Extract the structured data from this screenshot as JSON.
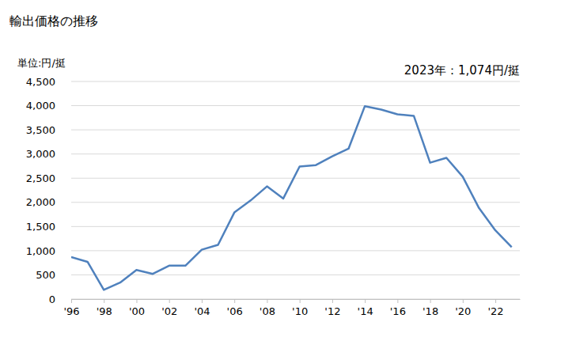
{
  "chart_data": {
    "type": "line",
    "title": "輸出価格の推移",
    "y_label": "単位:円/挺",
    "annotation": "2023年：1,074円/挺",
    "x": [
      1996,
      1997,
      1998,
      1999,
      2000,
      2001,
      2002,
      2003,
      2004,
      2005,
      2006,
      2007,
      2008,
      2009,
      2010,
      2011,
      2012,
      2013,
      2014,
      2015,
      2016,
      2017,
      2018,
      2019,
      2020,
      2021,
      2022,
      2023
    ],
    "values": [
      870,
      770,
      190,
      340,
      600,
      520,
      690,
      690,
      1020,
      1120,
      1790,
      2040,
      2330,
      2080,
      2740,
      2770,
      2950,
      3110,
      3990,
      3920,
      3820,
      3790,
      2820,
      2920,
      2530,
      1880,
      1420,
      1074
    ],
    "color": "#4f81bd",
    "xlim": [
      1996,
      2023.5
    ],
    "xticks": [
      {
        "value": 1996,
        "label": "'96"
      },
      {
        "value": 1998,
        "label": "'98"
      },
      {
        "value": 2000,
        "label": "'00"
      },
      {
        "value": 2002,
        "label": "'02"
      },
      {
        "value": 2004,
        "label": "'04"
      },
      {
        "value": 2006,
        "label": "'06"
      },
      {
        "value": 2008,
        "label": "'08"
      },
      {
        "value": 2010,
        "label": "'10"
      },
      {
        "value": 2012,
        "label": "'12"
      },
      {
        "value": 2014,
        "label": "'14"
      },
      {
        "value": 2016,
        "label": "'16"
      },
      {
        "value": 2018,
        "label": "'18"
      },
      {
        "value": 2020,
        "label": "'20"
      },
      {
        "value": 2022,
        "label": "'22"
      }
    ],
    "ylim": [
      0,
      4500
    ],
    "yticks": [
      0,
      500,
      {
        "value": 1000,
        "label": "1,000"
      },
      {
        "value": 1500,
        "label": "1,500"
      },
      {
        "value": 2000,
        "label": "2,000"
      },
      {
        "value": 2500,
        "label": "2,500"
      },
      {
        "value": 3000,
        "label": "3,000"
      },
      {
        "value": 3500,
        "label": "3,500"
      },
      {
        "value": 4000,
        "label": "4,000"
      },
      {
        "value": 4500,
        "label": "4,500"
      }
    ],
    "grid": true
  }
}
